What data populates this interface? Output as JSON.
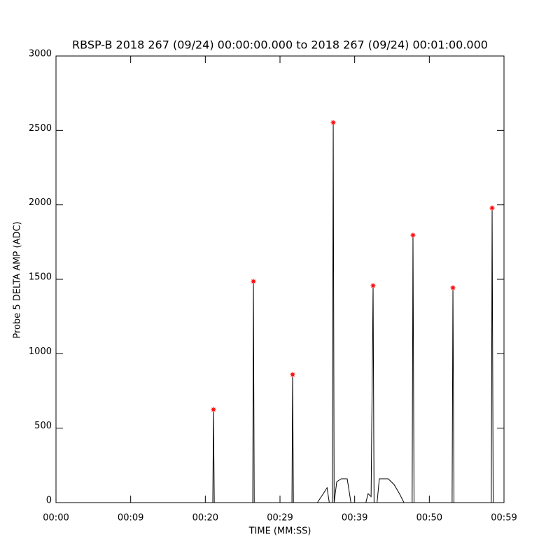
{
  "chart_data": {
    "type": "line",
    "title": "RBSP-B 2018 267 (09/24) 00:00:00.000 to 2018 267 (09/24) 00:01:00.000",
    "x_label": "TIME (MM:SS)",
    "y_label": "Probe 5 DELTA AMP (ADC)",
    "xlim": [
      0,
      60
    ],
    "ylim": [
      0,
      3000
    ],
    "xticks": [
      {
        "value": 0,
        "label": "00:00"
      },
      {
        "value": 10,
        "label": "00:09"
      },
      {
        "value": 20,
        "label": "00:20"
      },
      {
        "value": 30,
        "label": "00:29"
      },
      {
        "value": 40,
        "label": "00:39"
      },
      {
        "value": 50,
        "label": "00:50"
      },
      {
        "value": 60,
        "label": "00:59"
      }
    ],
    "yticks": [
      0,
      500,
      1000,
      1500,
      2000,
      2500,
      3000
    ],
    "series": [
      {
        "color": "#000000",
        "x": [
          0,
          21.0,
          21.09,
          21.2,
          26.35,
          26.44,
          26.55,
          31.6,
          31.69,
          31.8,
          35.0,
          35.8,
          36.3,
          36.6,
          37.0,
          37.13,
          37.25,
          37.6,
          38.2,
          39.0,
          39.5,
          41.5,
          41.8,
          42.2,
          42.47,
          42.6,
          43.0,
          43.3,
          44.5,
          45.3,
          46.0,
          46.6,
          47.7,
          47.81,
          47.95,
          53.05,
          53.16,
          53.3,
          58.3,
          58.41,
          58.55,
          60
        ],
        "values": [
          0,
          0,
          625,
          0,
          0,
          1486,
          0,
          0,
          860,
          0,
          0,
          60,
          100,
          0,
          0,
          2553,
          0,
          140,
          160,
          160,
          0,
          0,
          60,
          40,
          1457,
          0,
          0,
          160,
          160,
          120,
          60,
          0,
          0,
          1796,
          0,
          0,
          1443,
          0,
          0,
          1979,
          0,
          0
        ]
      },
      {
        "color": "#ff0000",
        "marker": "asterisk",
        "x": [
          21.09,
          26.44,
          31.69,
          37.13,
          42.47,
          47.81,
          53.16,
          58.41
        ],
        "values": [
          625,
          1486,
          860,
          2553,
          1457,
          1796,
          1443,
          1979
        ]
      }
    ]
  }
}
